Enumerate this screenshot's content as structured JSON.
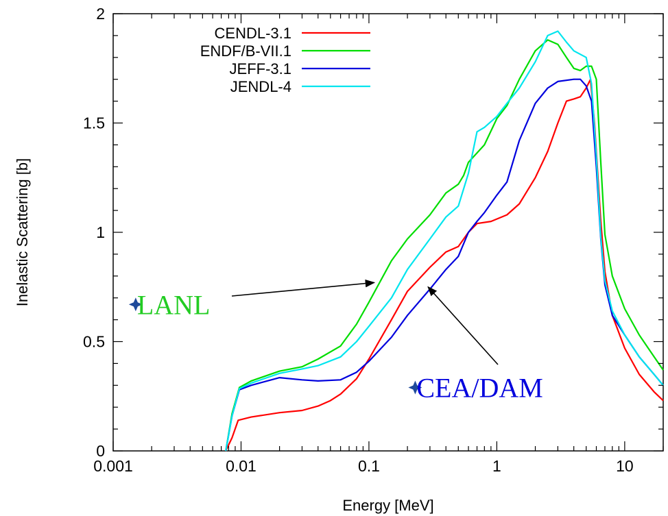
{
  "chart_data": {
    "type": "line",
    "title": "",
    "xlabel": "Energy [MeV]",
    "ylabel": "Inelastic Scattering [b]",
    "xscale": "log",
    "xlim": [
      0.001,
      20
    ],
    "ylim": [
      0,
      2
    ],
    "grid": false,
    "legend_position": "top-left",
    "x_ticks": [
      {
        "value": 0.001,
        "label": "0.001"
      },
      {
        "value": 0.01,
        "label": "0.01"
      },
      {
        "value": 0.1,
        "label": "0.1"
      },
      {
        "value": 1,
        "label": "1"
      },
      {
        "value": 10,
        "label": "10"
      }
    ],
    "y_ticks": [
      {
        "value": 0,
        "label": "0"
      },
      {
        "value": 0.5,
        "label": "0.5"
      },
      {
        "value": 1,
        "label": "1"
      },
      {
        "value": 1.5,
        "label": "1.5"
      },
      {
        "value": 2,
        "label": "2"
      }
    ],
    "series": [
      {
        "name": "CENDL-3.1",
        "color": "#ff0000",
        "points": [
          [
            0.0076,
            0
          ],
          [
            0.0085,
            0.06
          ],
          [
            0.0095,
            0.14
          ],
          [
            0.012,
            0.155
          ],
          [
            0.02,
            0.175
          ],
          [
            0.03,
            0.185
          ],
          [
            0.04,
            0.205
          ],
          [
            0.05,
            0.23
          ],
          [
            0.06,
            0.26
          ],
          [
            0.08,
            0.33
          ],
          [
            0.1,
            0.42
          ],
          [
            0.15,
            0.6
          ],
          [
            0.2,
            0.73
          ],
          [
            0.3,
            0.84
          ],
          [
            0.4,
            0.91
          ],
          [
            0.5,
            0.935
          ],
          [
            0.6,
            1.0
          ],
          [
            0.7,
            1.04
          ],
          [
            0.9,
            1.05
          ],
          [
            1.2,
            1.08
          ],
          [
            1.5,
            1.13
          ],
          [
            2,
            1.25
          ],
          [
            2.5,
            1.37
          ],
          [
            3,
            1.5
          ],
          [
            3.5,
            1.6
          ],
          [
            4,
            1.61
          ],
          [
            4.5,
            1.62
          ],
          [
            5,
            1.66
          ],
          [
            5.4,
            1.7
          ],
          [
            5.8,
            1.5
          ],
          [
            6.5,
            1.05
          ],
          [
            7,
            0.82
          ],
          [
            8,
            0.62
          ],
          [
            10,
            0.47
          ],
          [
            13,
            0.35
          ],
          [
            17,
            0.27
          ],
          [
            20,
            0.23
          ]
        ]
      },
      {
        "name": "ENDF/B-VII.1",
        "color": "#00dd00",
        "points": [
          [
            0.0076,
            0
          ],
          [
            0.0085,
            0.17
          ],
          [
            0.0097,
            0.29
          ],
          [
            0.012,
            0.32
          ],
          [
            0.02,
            0.365
          ],
          [
            0.03,
            0.385
          ],
          [
            0.04,
            0.42
          ],
          [
            0.06,
            0.48
          ],
          [
            0.08,
            0.58
          ],
          [
            0.1,
            0.68
          ],
          [
            0.15,
            0.87
          ],
          [
            0.2,
            0.97
          ],
          [
            0.3,
            1.08
          ],
          [
            0.4,
            1.18
          ],
          [
            0.5,
            1.22
          ],
          [
            0.55,
            1.26
          ],
          [
            0.6,
            1.32
          ],
          [
            0.8,
            1.4
          ],
          [
            1,
            1.52
          ],
          [
            1.2,
            1.58
          ],
          [
            1.5,
            1.7
          ],
          [
            2,
            1.83
          ],
          [
            2.5,
            1.88
          ],
          [
            3,
            1.86
          ],
          [
            3.5,
            1.8
          ],
          [
            4,
            1.75
          ],
          [
            4.5,
            1.74
          ],
          [
            5,
            1.76
          ],
          [
            5.5,
            1.76
          ],
          [
            6,
            1.7
          ],
          [
            6.5,
            1.32
          ],
          [
            7,
            0.99
          ],
          [
            8,
            0.8
          ],
          [
            10,
            0.65
          ],
          [
            13,
            0.53
          ],
          [
            17,
            0.43
          ],
          [
            20,
            0.37
          ]
        ]
      },
      {
        "name": "JEFF-3.1",
        "color": "#0000dd",
        "points": [
          [
            0.0076,
            0
          ],
          [
            0.0085,
            0.16
          ],
          [
            0.0097,
            0.28
          ],
          [
            0.012,
            0.3
          ],
          [
            0.02,
            0.335
          ],
          [
            0.03,
            0.325
          ],
          [
            0.04,
            0.32
          ],
          [
            0.06,
            0.325
          ],
          [
            0.08,
            0.36
          ],
          [
            0.1,
            0.41
          ],
          [
            0.15,
            0.52
          ],
          [
            0.2,
            0.62
          ],
          [
            0.3,
            0.74
          ],
          [
            0.4,
            0.83
          ],
          [
            0.5,
            0.89
          ],
          [
            0.6,
            1.0
          ],
          [
            0.7,
            1.05
          ],
          [
            0.8,
            1.09
          ],
          [
            1,
            1.17
          ],
          [
            1.2,
            1.23
          ],
          [
            1.5,
            1.42
          ],
          [
            2,
            1.59
          ],
          [
            2.5,
            1.66
          ],
          [
            3,
            1.69
          ],
          [
            4,
            1.7
          ],
          [
            4.5,
            1.7
          ],
          [
            5,
            1.67
          ],
          [
            5.5,
            1.6
          ],
          [
            6,
            1.3
          ],
          [
            6.5,
            0.97
          ],
          [
            7,
            0.76
          ],
          [
            8,
            0.62
          ],
          [
            10,
            0.53
          ],
          [
            13,
            0.43
          ],
          [
            17,
            0.35
          ],
          [
            20,
            0.3
          ]
        ]
      },
      {
        "name": "JENDL-4",
        "color": "#00e5ee",
        "points": [
          [
            0.0076,
            0
          ],
          [
            0.0085,
            0.16
          ],
          [
            0.0097,
            0.285
          ],
          [
            0.012,
            0.31
          ],
          [
            0.02,
            0.355
          ],
          [
            0.03,
            0.375
          ],
          [
            0.04,
            0.39
          ],
          [
            0.06,
            0.43
          ],
          [
            0.08,
            0.5
          ],
          [
            0.1,
            0.57
          ],
          [
            0.15,
            0.7
          ],
          [
            0.2,
            0.83
          ],
          [
            0.3,
            0.97
          ],
          [
            0.4,
            1.07
          ],
          [
            0.5,
            1.12
          ],
          [
            0.6,
            1.27
          ],
          [
            0.7,
            1.46
          ],
          [
            0.8,
            1.48
          ],
          [
            1,
            1.53
          ],
          [
            1.2,
            1.59
          ],
          [
            1.5,
            1.66
          ],
          [
            2,
            1.78
          ],
          [
            2.5,
            1.9
          ],
          [
            3,
            1.92
          ],
          [
            3.5,
            1.87
          ],
          [
            4,
            1.83
          ],
          [
            5,
            1.8
          ],
          [
            5.5,
            1.68
          ],
          [
            6,
            1.35
          ],
          [
            6.5,
            0.98
          ],
          [
            7,
            0.78
          ],
          [
            8,
            0.64
          ],
          [
            10,
            0.53
          ],
          [
            13,
            0.43
          ],
          [
            17,
            0.35
          ],
          [
            20,
            0.3
          ]
        ]
      }
    ],
    "annotations": [
      {
        "text": "LANL",
        "color": "#22cc22",
        "marker_color": "#1e4a9a",
        "marker_at": [
          0.0015,
          0.67
        ],
        "arrow_to": [
          0.11,
          0.77
        ]
      },
      {
        "text": "CEA/DAM",
        "color": "#0000dd",
        "marker_color": "#1e4a9a",
        "marker_at": [
          0.23,
          0.29
        ],
        "arrow_to": [
          0.29,
          0.75
        ]
      }
    ]
  }
}
